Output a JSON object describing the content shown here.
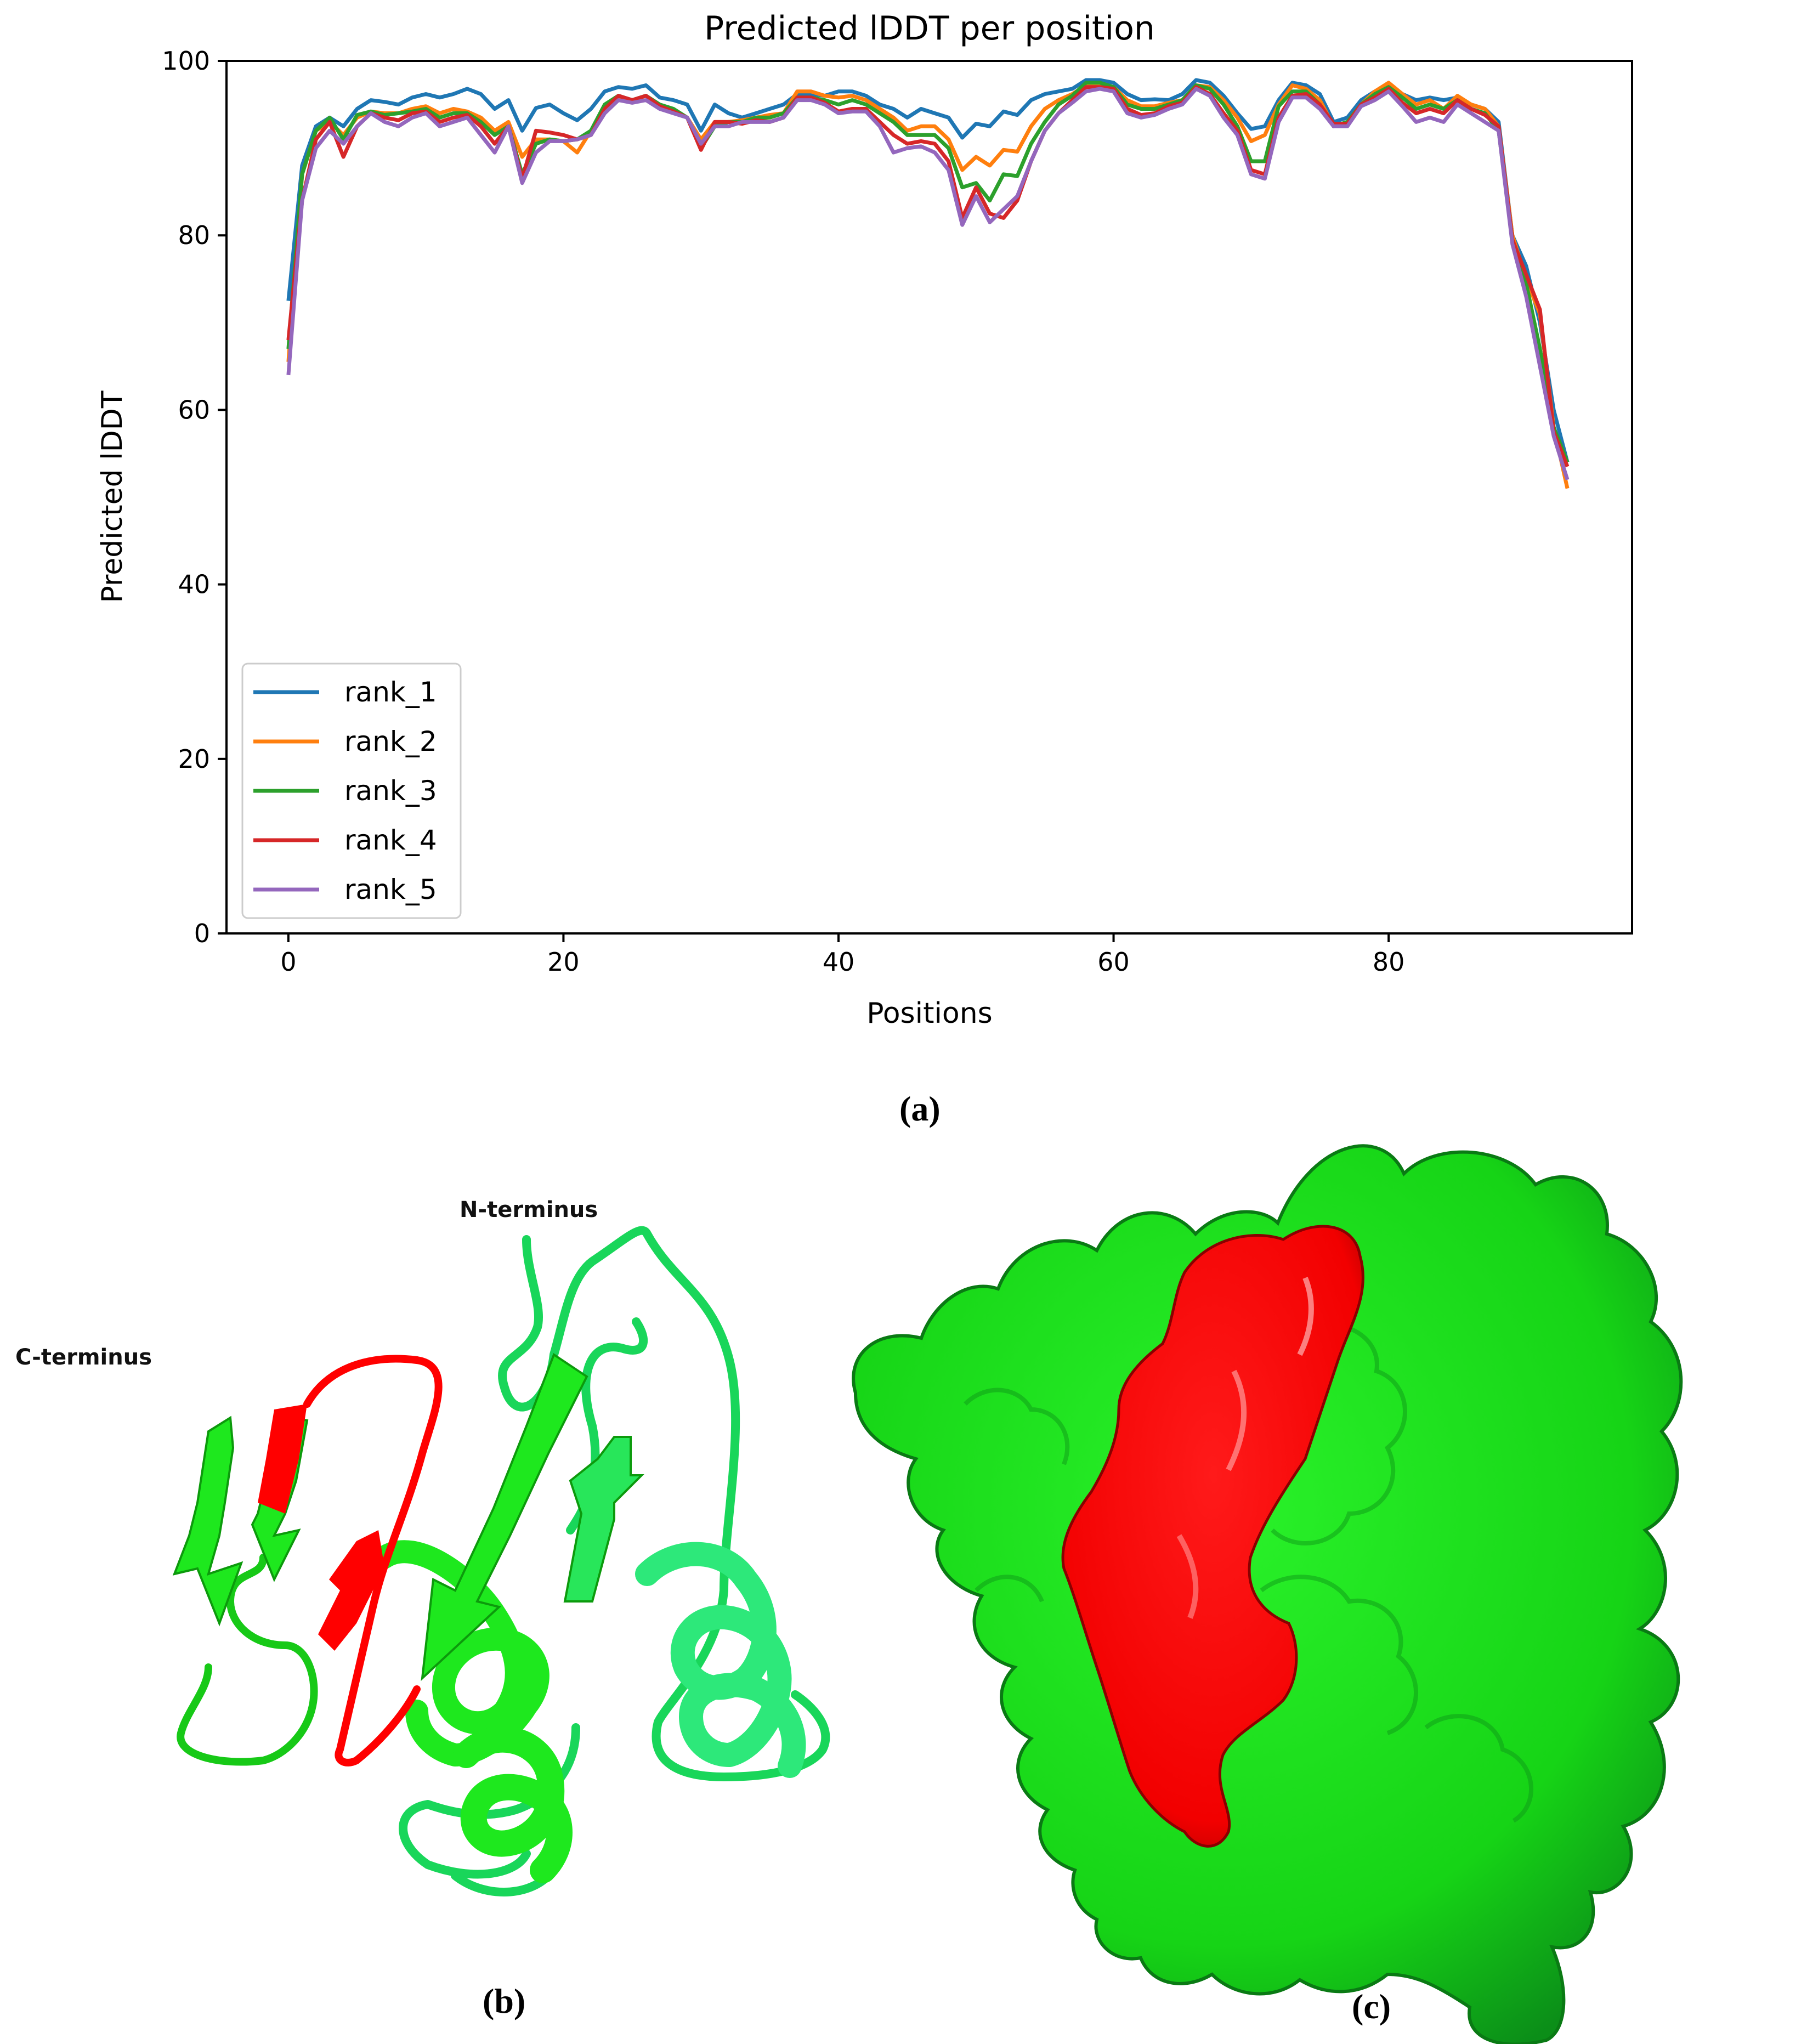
{
  "panels": {
    "a_label": "(a)",
    "b_label": "(b)",
    "c_label": "(c)"
  },
  "structure": {
    "n_terminus": "N-terminus",
    "c_terminus": "C-terminus",
    "colors": {
      "ribbon": "#1ee81e",
      "ribbon_alt": "#2de87a",
      "highlight": "#ff0000",
      "surface": "#19e619",
      "surface_dark": "#0f9a20"
    }
  },
  "chart_data": {
    "type": "line",
    "title": "Predicted lDDT per position",
    "xlabel": "Positions",
    "ylabel": "Predicted lDDT",
    "xlim": [
      -4.5,
      97.7
    ],
    "ylim": [
      0,
      100
    ],
    "xticks": [
      0,
      20,
      40,
      60,
      80
    ],
    "yticks": [
      0,
      20,
      40,
      60,
      80,
      100
    ],
    "grid": false,
    "legend_position": "lower-left",
    "x": [
      0,
      1,
      2,
      3,
      4,
      5,
      6,
      7,
      8,
      9,
      10,
      11,
      12,
      13,
      14,
      15,
      16,
      17,
      18,
      19,
      20,
      21,
      22,
      23,
      24,
      25,
      26,
      27,
      28,
      29,
      30,
      31,
      32,
      33,
      34,
      35,
      36,
      37,
      38,
      39,
      40,
      41,
      42,
      43,
      44,
      45,
      46,
      47,
      48,
      49,
      50,
      51,
      52,
      53,
      54,
      55,
      56,
      57,
      58,
      59,
      60,
      61,
      62,
      63,
      64,
      65,
      66,
      67,
      68,
      69,
      70,
      71,
      72,
      73,
      74,
      75,
      76,
      77,
      78,
      79,
      80,
      81,
      82,
      83,
      84,
      85,
      86,
      87,
      88,
      89,
      90,
      91,
      92,
      93
    ],
    "series": [
      {
        "name": "rank_1",
        "color": "#1f77b4",
        "values": [
          72.5,
          88,
          92.5,
          93.5,
          92.5,
          94.5,
          95.5,
          95.3,
          95,
          95.8,
          96.2,
          95.8,
          96.2,
          96.8,
          96.2,
          94.5,
          95.5,
          92,
          94.6,
          95,
          94,
          93.2,
          94.5,
          96.5,
          97,
          96.8,
          97.2,
          95.8,
          95.5,
          95,
          92,
          95,
          94,
          93.5,
          94,
          94.5,
          95,
          96.2,
          96.2,
          96,
          96.5,
          96.5,
          96,
          95,
          94.5,
          93.5,
          94.5,
          94,
          93.5,
          91.2,
          92.8,
          92.5,
          94.2,
          93.8,
          95.5,
          96.2,
          96.5,
          96.8,
          97.8,
          97.8,
          97.5,
          96.2,
          95.5,
          95.6,
          95.5,
          96.2,
          97.8,
          97.5,
          96,
          94,
          92.2,
          92.5,
          95.5,
          97.5,
          97.2,
          96.2,
          93,
          93.5,
          95.5,
          96.5,
          97.2,
          96.2,
          95.5,
          95.8,
          95.5,
          95.8,
          95,
          94.5,
          93,
          80,
          76.5,
          70,
          60,
          54
        ]
      },
      {
        "name": "rank_2",
        "color": "#ff7f0e",
        "values": [
          65.5,
          87,
          92,
          93,
          91.5,
          93.5,
          94.2,
          94,
          94,
          94.5,
          94.8,
          94,
          94.5,
          94.2,
          93.5,
          92,
          93,
          89,
          91,
          91,
          90.8,
          89.5,
          92,
          94.8,
          95.8,
          95.5,
          96,
          94.8,
          94.2,
          93.5,
          91,
          93,
          93,
          93.2,
          93.5,
          93.8,
          94,
          96.5,
          96.5,
          96,
          95.8,
          96,
          95.5,
          94.5,
          93.5,
          92,
          92.5,
          92.5,
          91,
          87.5,
          89,
          88,
          89.8,
          89.6,
          92.5,
          94.5,
          95.5,
          96.2,
          97.2,
          97.2,
          97,
          95.5,
          94.8,
          94.8,
          95.2,
          95.5,
          97.2,
          97,
          95.5,
          93.5,
          90.8,
          91.5,
          95,
          97.2,
          96.8,
          95.5,
          92.5,
          93,
          95,
          96.5,
          97.5,
          96.2,
          95,
          95.5,
          94.5,
          96,
          95,
          94.5,
          92.5,
          80,
          75,
          71,
          58,
          51
        ]
      },
      {
        "name": "rank_3",
        "color": "#2ca02c",
        "values": [
          67,
          87,
          92,
          93.5,
          91,
          93.8,
          94.2,
          93.8,
          94,
          94.2,
          94.5,
          93.5,
          94,
          94,
          93,
          91.5,
          92.5,
          87,
          90.5,
          91,
          90.8,
          91,
          92,
          95,
          96,
          95.5,
          96,
          95,
          94.5,
          93.5,
          90,
          92.5,
          93,
          93,
          93.5,
          93.5,
          94,
          95.8,
          95.8,
          95.5,
          95,
          95.5,
          95,
          94,
          93,
          91.5,
          91.5,
          91.5,
          90,
          85.5,
          86,
          84,
          87,
          86.8,
          90.5,
          93,
          95,
          96,
          97.5,
          97.5,
          97,
          95,
          94.5,
          94.5,
          95,
          95.5,
          97.2,
          96.8,
          95,
          92.5,
          88.5,
          88.5,
          94.8,
          96.5,
          96.5,
          95,
          92.5,
          93,
          95,
          96.2,
          97,
          95.8,
          94.5,
          95,
          94.5,
          95.5,
          94.5,
          94,
          92,
          79.5,
          74.5,
          67,
          58,
          54
        ]
      },
      {
        "name": "rank_4",
        "color": "#d62728",
        "values": [
          68,
          84,
          91,
          93,
          89,
          92.5,
          94,
          93.5,
          93.2,
          94,
          94.2,
          93,
          93.5,
          93.8,
          92.5,
          90.5,
          92.5,
          86.5,
          92,
          91.8,
          91.5,
          91,
          91.5,
          94.5,
          96,
          95.5,
          96,
          94.8,
          94.2,
          93.5,
          89.8,
          93,
          93,
          92.8,
          93.2,
          93,
          93.5,
          95.8,
          95.8,
          95.2,
          94.2,
          94.5,
          94.5,
          93,
          91.5,
          90.5,
          90.8,
          90.5,
          88.5,
          82,
          85.5,
          82.5,
          82,
          84,
          88.5,
          92,
          94,
          95.5,
          97,
          97,
          96.8,
          94.5,
          93.8,
          94,
          94.8,
          95.2,
          97,
          96.2,
          94,
          92,
          87.5,
          87,
          93.5,
          96,
          96.2,
          95,
          92.8,
          92.8,
          95,
          95.8,
          96.8,
          95.2,
          94,
          94.5,
          94,
          95.5,
          94.5,
          93.8,
          92.5,
          79.5,
          75.5,
          71.5,
          57.5,
          53.5
        ]
      },
      {
        "name": "rank_5",
        "color": "#9467bd",
        "values": [
          64,
          84,
          90,
          92,
          90.5,
          92.5,
          94,
          93,
          92.5,
          93.5,
          94,
          92.5,
          93,
          93.5,
          91.5,
          89.5,
          92.5,
          86,
          89.5,
          90.8,
          90.8,
          91,
          91.5,
          94,
          95.5,
          95.2,
          95.5,
          94.5,
          94,
          93.5,
          90.5,
          92.5,
          92.5,
          93,
          93,
          93,
          93.5,
          95.5,
          95.5,
          95,
          94,
          94.2,
          94.2,
          92.5,
          89.5,
          90,
          90.2,
          89.5,
          87.5,
          81.2,
          84.5,
          81.5,
          83,
          84.5,
          88.5,
          92,
          94,
          95.2,
          96.5,
          96.8,
          96.5,
          94,
          93.5,
          93.8,
          94.5,
          95,
          96.8,
          96,
          93.5,
          91.5,
          87,
          86.5,
          93,
          95.8,
          95.8,
          94.5,
          92.5,
          92.5,
          94.8,
          95.5,
          96.5,
          94.8,
          93,
          93.5,
          93,
          95,
          94,
          93,
          92,
          79,
          73,
          65,
          57,
          52
        ]
      }
    ]
  }
}
